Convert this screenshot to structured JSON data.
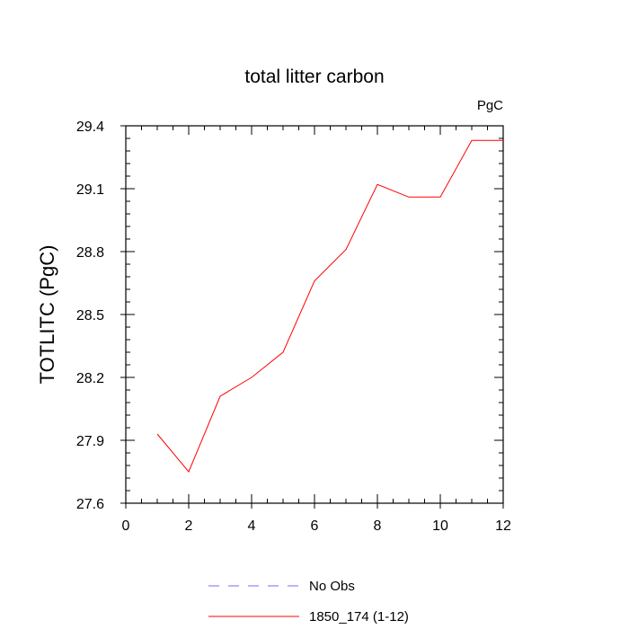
{
  "chart_data": {
    "type": "line",
    "title": "total litter carbon",
    "units_label": "PgC",
    "xlabel": "",
    "ylabel": "TOTLITC  (PgC)",
    "xlim": [
      0,
      12
    ],
    "ylim": [
      27.6,
      29.4
    ],
    "x_ticks": [
      0,
      2,
      4,
      6,
      8,
      10,
      12
    ],
    "y_ticks": [
      27.6,
      27.9,
      28.2,
      28.5,
      28.8,
      29.1,
      29.4
    ],
    "grid": false,
    "legend_position": "bottom",
    "series": [
      {
        "name": "1850_174 (1-12)",
        "color": "#ff0000",
        "style": "solid",
        "x": [
          1,
          2,
          3,
          4,
          5,
          6,
          7,
          8,
          9,
          10,
          11,
          12
        ],
        "y": [
          27.93,
          27.75,
          28.11,
          28.2,
          28.32,
          28.66,
          28.81,
          29.12,
          29.06,
          29.06,
          29.33,
          29.33
        ]
      }
    ],
    "legend": [
      {
        "label": "No Obs",
        "color": "#6d6dff",
        "style": "dashed"
      },
      {
        "label": "1850_174 (1-12)",
        "color": "#ff0000",
        "style": "solid"
      }
    ]
  }
}
